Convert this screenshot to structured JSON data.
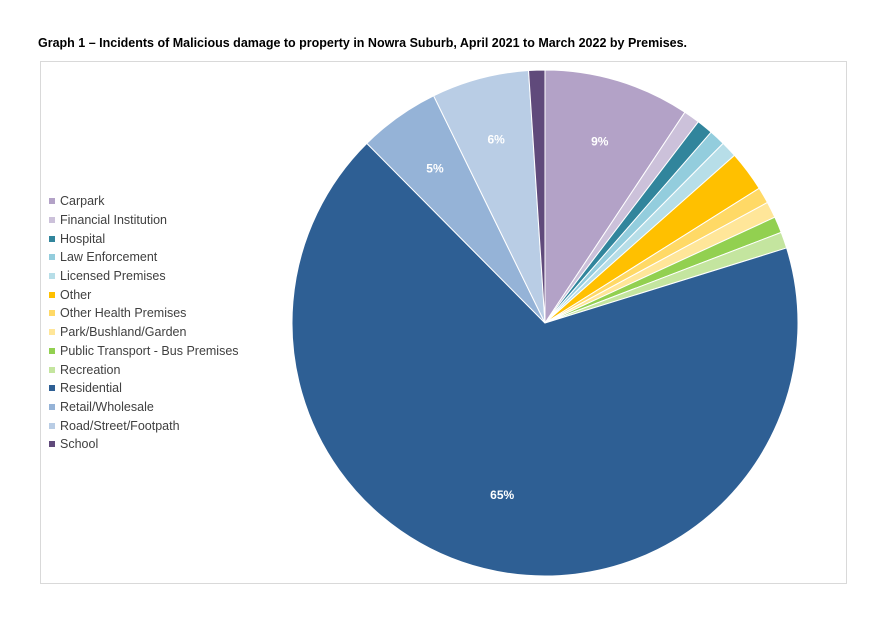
{
  "title": "Graph 1 – Incidents of Malicious damage to property in Nowra Suburb, April 2021 to March 2022 by Premises.",
  "chart_data": {
    "type": "pie",
    "title": "Graph 1 – Incidents of Malicious damage to property in Nowra Suburb, April 2021 to March 2022 by Premises.",
    "legend_position": "left",
    "slices": [
      {
        "label": "Carpark",
        "value": 9,
        "color": "#b3a2c7",
        "shown_label": "9%"
      },
      {
        "label": "Financial Institution",
        "value": 1,
        "color": "#ccc1da",
        "shown_label": ""
      },
      {
        "label": "Hospital",
        "value": 1,
        "color": "#31859c",
        "shown_label": ""
      },
      {
        "label": "Law Enforcement",
        "value": 1,
        "color": "#93cddd",
        "shown_label": ""
      },
      {
        "label": "Licensed Premises",
        "value": 1,
        "color": "#b7dee8",
        "shown_label": ""
      },
      {
        "label": "Other",
        "value": 2.5,
        "color": "#ffc000",
        "shown_label": ""
      },
      {
        "label": "Other Health Premises",
        "value": 1,
        "color": "#ffd966",
        "shown_label": ""
      },
      {
        "label": "Park/Bushland/Garden",
        "value": 1,
        "color": "#ffe699",
        "shown_label": ""
      },
      {
        "label": "Public Transport - Bus Premises",
        "value": 1,
        "color": "#92d050",
        "shown_label": ""
      },
      {
        "label": "Recreation",
        "value": 1,
        "color": "#c4e59f",
        "shown_label": ""
      },
      {
        "label": "Residential",
        "value": 65,
        "color": "#2e5f94",
        "shown_label": "65%"
      },
      {
        "label": "Retail/Wholesale",
        "value": 5,
        "color": "#95b3d7",
        "shown_label": "5%"
      },
      {
        "label": "Road/Street/Footpath",
        "value": 6,
        "color": "#b9cde5",
        "shown_label": "6%"
      },
      {
        "label": "School",
        "value": 1,
        "color": "#604a7b",
        "shown_label": ""
      }
    ]
  }
}
